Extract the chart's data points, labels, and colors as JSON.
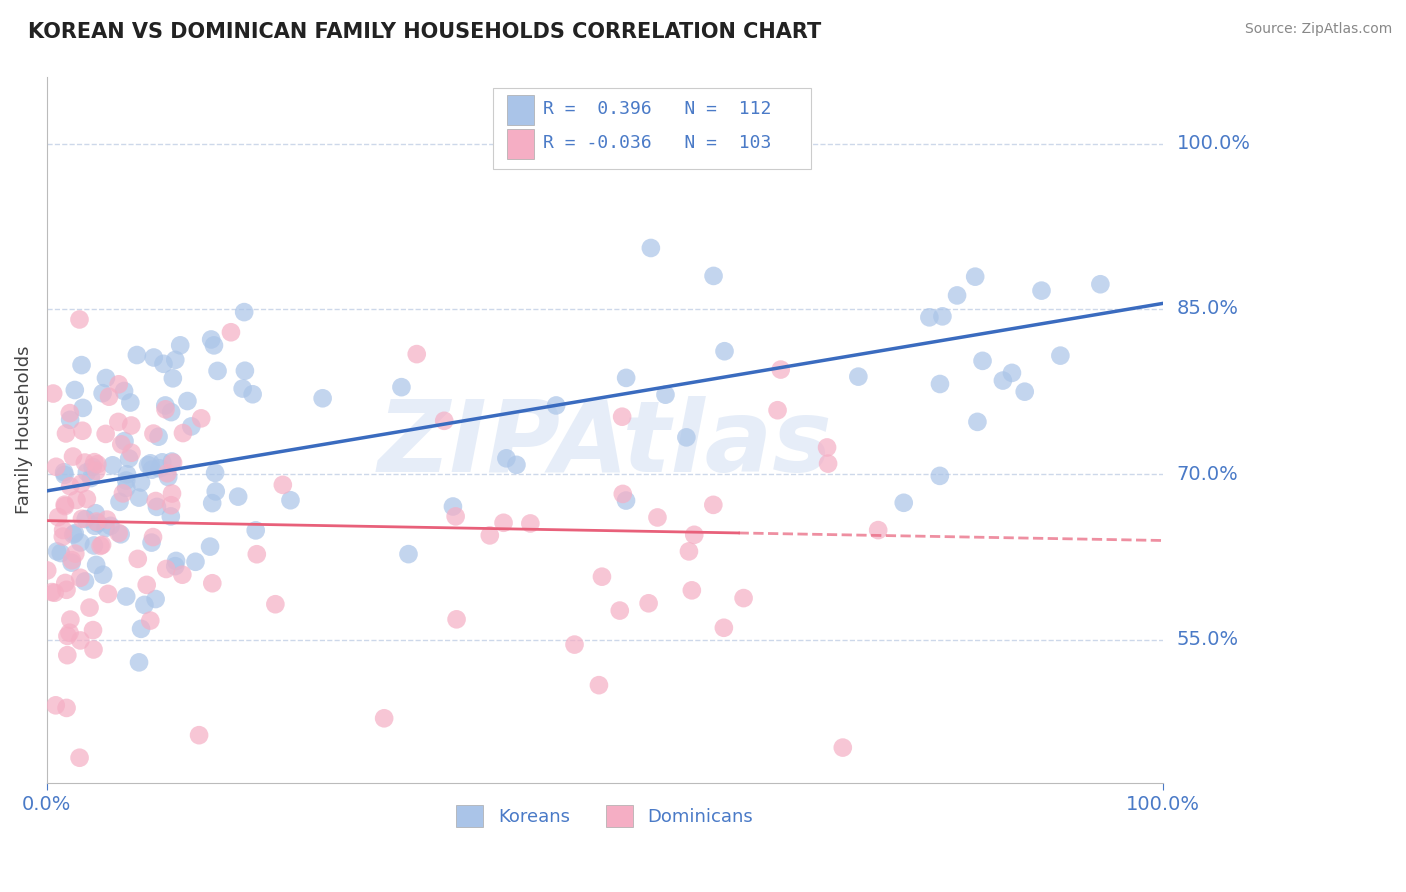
{
  "title": "KOREAN VS DOMINICAN FAMILY HOUSEHOLDS CORRELATION CHART",
  "source": "Source: ZipAtlas.com",
  "ylabel": "Family Households",
  "y_tick_values": [
    0.55,
    0.7,
    0.85,
    1.0
  ],
  "xlim": [
    0.0,
    1.0
  ],
  "ylim": [
    0.42,
    1.06
  ],
  "korean_color": "#aac4e8",
  "dominican_color": "#f5aec4",
  "korean_line_color": "#3a6bbf",
  "dominican_line_color": "#e8607a",
  "korean_R": 0.396,
  "korean_N": 112,
  "dominican_R": -0.036,
  "dominican_N": 103,
  "watermark": "ZIPAtlas",
  "watermark_color": "#c8d8f0",
  "background_color": "#ffffff",
  "grid_color": "#c8d4e8",
  "axis_label_color": "#4a7ac7",
  "legend_label_korean": "Koreans",
  "legend_label_dominican": "Dominicans",
  "korean_slope": 0.17,
  "korean_intercept": 0.685,
  "dominican_slope": -0.018,
  "dominican_intercept": 0.658
}
